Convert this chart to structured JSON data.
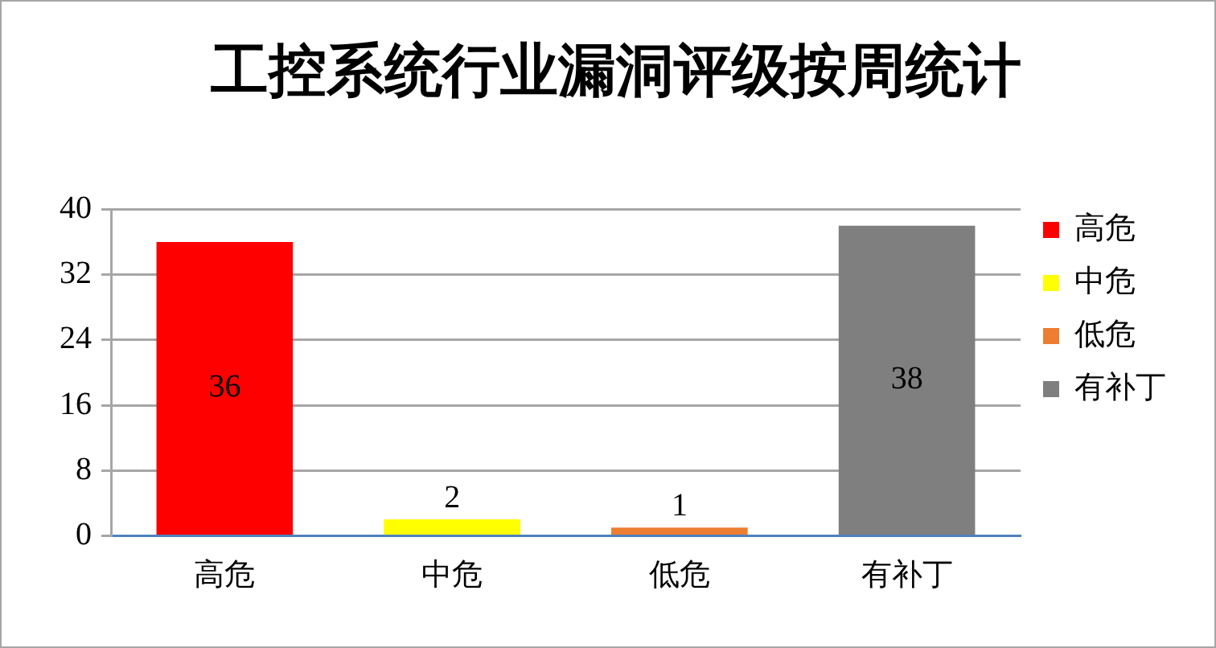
{
  "chart_data": {
    "type": "bar",
    "title": "工控系统行业漏洞评级按周统计",
    "categories": [
      "高危",
      "中危",
      "低危",
      "有补丁"
    ],
    "series": [
      {
        "name": "高危",
        "color": "#ff0000",
        "values": [
          36,
          null,
          null,
          null
        ]
      },
      {
        "name": "中危",
        "color": "#ffff00",
        "values": [
          null,
          2,
          null,
          null
        ]
      },
      {
        "name": "低危",
        "color": "#ed7d31",
        "values": [
          null,
          null,
          1,
          null
        ]
      },
      {
        "name": "有补丁",
        "color": "#7f7f7f",
        "values": [
          null,
          null,
          null,
          38
        ]
      }
    ],
    "ylim": [
      0,
      40
    ],
    "yticks": [
      0,
      8,
      16,
      24,
      32,
      40
    ],
    "grid": "y",
    "legend": "right",
    "data_labels": true
  }
}
